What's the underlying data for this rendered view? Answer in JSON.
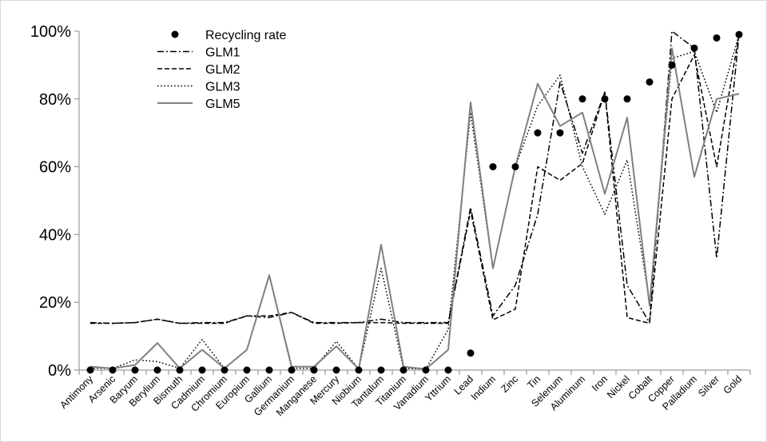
{
  "chart_data": {
    "type": "line",
    "title": "",
    "xlabel": "",
    "ylabel": "",
    "ylim": [
      0,
      100
    ],
    "y_ticks": [
      "0%",
      "20%",
      "40%",
      "60%",
      "80%",
      "100%"
    ],
    "y_tick_values": [
      0,
      20,
      40,
      60,
      80,
      100
    ],
    "grid": false,
    "legend_position": "top-left",
    "categories": [
      "Antimony",
      "Arsenic",
      "Baryum",
      "Berylium",
      "Bismuth",
      "Cadmium",
      "Chromium",
      "Europium",
      "Gallium",
      "Germanium",
      "Manganese",
      "Mercury",
      "Niobium",
      "Tantalum",
      "Titanium",
      "Vanadium",
      "Yttrium",
      "Lead",
      "Indium",
      "Zinc",
      "Tin",
      "Selenum",
      "Aluminum",
      "Iron",
      "Nickel",
      "Cobalt",
      "Copper",
      "Palladium",
      "Silver",
      "Gold"
    ],
    "series": [
      {
        "name": "Recycling rate",
        "style": "markers",
        "color": "#000000",
        "values": [
          0,
          0,
          0,
          0,
          0,
          0,
          0,
          0,
          0,
          0,
          0,
          0,
          0,
          0,
          0,
          0,
          0,
          5,
          60,
          60,
          70,
          70,
          80,
          80,
          80,
          85,
          90,
          95,
          98,
          99
        ]
      },
      {
        "name": "GLM1",
        "style": "dash-dot",
        "color": "#000000",
        "values": [
          14,
          13.8,
          14,
          15,
          13.8,
          14,
          14,
          16,
          15.5,
          17,
          14,
          14,
          14,
          15,
          14,
          14,
          14,
          48,
          16,
          25,
          46,
          85,
          64,
          82,
          25,
          14,
          100,
          95,
          33,
          99
        ]
      },
      {
        "name": "GLM2",
        "style": "dashed",
        "color": "#000000",
        "values": [
          13.8,
          13.8,
          14,
          15,
          13.8,
          13.8,
          13.8,
          16,
          16,
          17,
          13.8,
          13.8,
          14,
          14,
          13.8,
          13.8,
          13.8,
          47,
          14.8,
          18,
          60,
          56,
          61,
          82,
          15.5,
          13.8,
          80,
          93,
          60,
          99
        ]
      },
      {
        "name": "GLM3",
        "style": "dotted",
        "color": "#000000",
        "values": [
          0.5,
          0.5,
          3,
          2.5,
          0.5,
          9,
          0.5,
          6,
          28,
          0.5,
          0.5,
          8.5,
          0.3,
          30,
          0.5,
          0.3,
          12,
          76,
          30,
          60,
          78,
          87,
          60,
          46,
          62,
          20,
          92,
          94,
          76,
          99
        ]
      },
      {
        "name": "GLM5",
        "style": "solid",
        "color": "#808080",
        "values": [
          1,
          0.5,
          1.5,
          8,
          0.5,
          6,
          0.5,
          6,
          28,
          1,
          1,
          7,
          0.3,
          37,
          1,
          0.3,
          6,
          79,
          30,
          60,
          84.5,
          72,
          76,
          52,
          74.5,
          19,
          95,
          57,
          80,
          81.5
        ]
      }
    ]
  }
}
